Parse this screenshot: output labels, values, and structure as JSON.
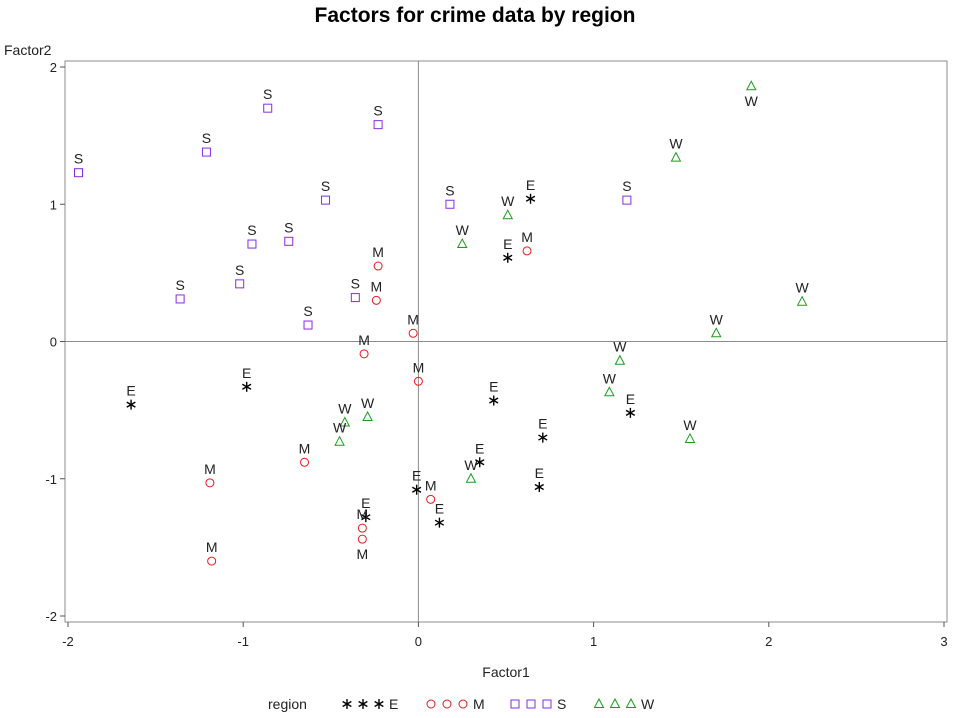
{
  "chart_data": {
    "type": "scatter",
    "title": "Factors for crime data by region",
    "xlabel": "Factor1",
    "ylabel": "Factor2",
    "xlim": [
      -2,
      3
    ],
    "ylim": [
      -2,
      2
    ],
    "xticks": [
      "-2",
      "-1",
      "0",
      "1",
      "2",
      "3"
    ],
    "yticks": [
      "2",
      "1",
      "0",
      "-1",
      "-2"
    ],
    "reference_lines": {
      "x": 0,
      "y": 0
    },
    "grid": false,
    "legend": {
      "title": "region",
      "placement": "bottom",
      "entries": [
        "E",
        "M",
        "S",
        "W"
      ]
    },
    "series": [
      {
        "name": "E",
        "marker": "asterisk",
        "color": "#000000",
        "points": [
          {
            "x": -1.64,
            "y": -0.46,
            "label": "E",
            "pos": "above"
          },
          {
            "x": -0.98,
            "y": -0.33,
            "label": "E",
            "pos": "above"
          },
          {
            "x": 0.64,
            "y": 1.04,
            "label": "E",
            "pos": "above"
          },
          {
            "x": 0.51,
            "y": 0.61,
            "label": "E",
            "pos": "above"
          },
          {
            "x": 0.43,
            "y": -0.43,
            "label": "E",
            "pos": "above"
          },
          {
            "x": 1.21,
            "y": -0.52,
            "label": "E",
            "pos": "above"
          },
          {
            "x": 0.71,
            "y": -0.7,
            "label": "E",
            "pos": "above"
          },
          {
            "x": 0.35,
            "y": -0.88,
            "label": "E",
            "pos": "above"
          },
          {
            "x": 0.69,
            "y": -1.06,
            "label": "E",
            "pos": "above"
          },
          {
            "x": -0.01,
            "y": -1.08,
            "label": "E",
            "pos": "above"
          },
          {
            "x": 0.12,
            "y": -1.32,
            "label": "E",
            "pos": "above"
          },
          {
            "x": -0.3,
            "y": -1.28,
            "label": "E",
            "pos": "above"
          }
        ]
      },
      {
        "name": "M",
        "marker": "circle",
        "color": "#e8191c",
        "points": [
          {
            "x": -0.23,
            "y": 0.55,
            "label": "M",
            "pos": "above"
          },
          {
            "x": -0.24,
            "y": 0.3,
            "label": "M",
            "pos": "above"
          },
          {
            "x": 0.62,
            "y": 0.66,
            "label": "M",
            "pos": "above"
          },
          {
            "x": -0.03,
            "y": 0.06,
            "label": "M",
            "pos": "above"
          },
          {
            "x": -0.31,
            "y": -0.09,
            "label": "M",
            "pos": "above"
          },
          {
            "x": 0.0,
            "y": -0.29,
            "label": "M",
            "pos": "above"
          },
          {
            "x": -0.65,
            "y": -0.88,
            "label": "M",
            "pos": "above"
          },
          {
            "x": -1.19,
            "y": -1.03,
            "label": "M",
            "pos": "above"
          },
          {
            "x": 0.07,
            "y": -1.15,
            "label": "M",
            "pos": "above"
          },
          {
            "x": -0.32,
            "y": -1.36,
            "label": "M",
            "pos": "above"
          },
          {
            "x": -0.32,
            "y": -1.44,
            "label": "M",
            "pos": "below"
          },
          {
            "x": -1.18,
            "y": -1.6,
            "label": "M",
            "pos": "above"
          }
        ]
      },
      {
        "name": "S",
        "marker": "square",
        "color": "#8a2be2",
        "points": [
          {
            "x": -1.94,
            "y": 1.23,
            "label": "S",
            "pos": "above"
          },
          {
            "x": -1.21,
            "y": 1.38,
            "label": "S",
            "pos": "above"
          },
          {
            "x": -0.86,
            "y": 1.7,
            "label": "S",
            "pos": "above"
          },
          {
            "x": -0.23,
            "y": 1.58,
            "label": "S",
            "pos": "above"
          },
          {
            "x": -0.53,
            "y": 1.03,
            "label": "S",
            "pos": "above"
          },
          {
            "x": -0.95,
            "y": 0.71,
            "label": "S",
            "pos": "above"
          },
          {
            "x": -0.74,
            "y": 0.73,
            "label": "S",
            "pos": "above"
          },
          {
            "x": -1.36,
            "y": 0.31,
            "label": "S",
            "pos": "above"
          },
          {
            "x": -1.02,
            "y": 0.42,
            "label": "S",
            "pos": "above"
          },
          {
            "x": -0.36,
            "y": 0.32,
            "label": "S",
            "pos": "above"
          },
          {
            "x": -0.63,
            "y": 0.12,
            "label": "S",
            "pos": "above"
          },
          {
            "x": 0.18,
            "y": 1.0,
            "label": "S",
            "pos": "above"
          },
          {
            "x": 1.19,
            "y": 1.03,
            "label": "S",
            "pos": "above"
          }
        ]
      },
      {
        "name": "W",
        "marker": "triangle",
        "color": "#1f9a1f",
        "points": [
          {
            "x": 1.9,
            "y": 1.86,
            "label": "W",
            "pos": "below"
          },
          {
            "x": 1.47,
            "y": 1.34,
            "label": "W",
            "pos": "above"
          },
          {
            "x": 0.51,
            "y": 0.92,
            "label": "W",
            "pos": "above"
          },
          {
            "x": 0.25,
            "y": 0.71,
            "label": "W",
            "pos": "above"
          },
          {
            "x": 2.19,
            "y": 0.29,
            "label": "W",
            "pos": "above"
          },
          {
            "x": 1.7,
            "y": 0.06,
            "label": "W",
            "pos": "above"
          },
          {
            "x": 1.15,
            "y": -0.14,
            "label": "W",
            "pos": "above"
          },
          {
            "x": 1.09,
            "y": -0.37,
            "label": "W",
            "pos": "above"
          },
          {
            "x": 1.55,
            "y": -0.71,
            "label": "W",
            "pos": "above"
          },
          {
            "x": -0.42,
            "y": -0.59,
            "label": "W",
            "pos": "above"
          },
          {
            "x": -0.29,
            "y": -0.55,
            "label": "W",
            "pos": "above"
          },
          {
            "x": -0.45,
            "y": -0.73,
            "label": "W",
            "pos": "above"
          },
          {
            "x": 0.3,
            "y": -1.0,
            "label": "W",
            "pos": "above"
          }
        ]
      }
    ]
  }
}
